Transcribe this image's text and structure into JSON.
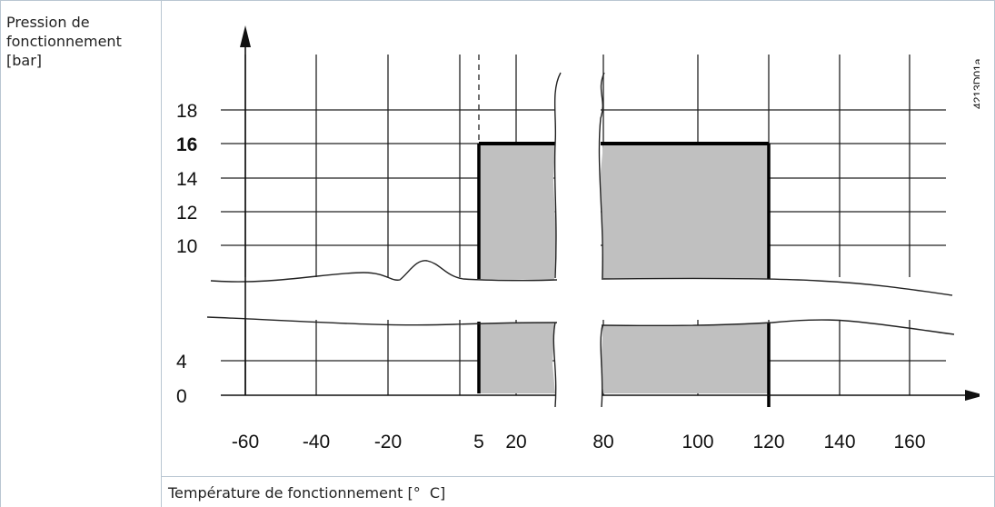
{
  "y_axis_label": "Pression de\nfonctionnement\n[bar]",
  "x_axis_label": "Température de fonctionnement [°  C]",
  "figure_code": "4213D01a",
  "chart_data": {
    "type": "area",
    "xlabel": "Température de fonctionnement [°  C]",
    "ylabel": "Pression de fonctionnement [bar]",
    "x_ticks": [
      "-60",
      "-40",
      "-20",
      "5",
      "20",
      "80",
      "100",
      "120",
      "140",
      "160"
    ],
    "y_ticks": [
      "0",
      "4",
      "10",
      "12",
      "14",
      "16",
      "18"
    ],
    "y_tick_bold": "16",
    "x_axis_breaks": [
      [
        20,
        80
      ]
    ],
    "y_axis_breaks": [
      [
        4,
        10
      ]
    ],
    "operating_range": {
      "temperature_min": 5,
      "temperature_max": 120,
      "pressure_min": 0,
      "pressure_max": 16
    },
    "grid": true,
    "fill_color": "#c0c0c0",
    "boundary_color": "#000000"
  }
}
